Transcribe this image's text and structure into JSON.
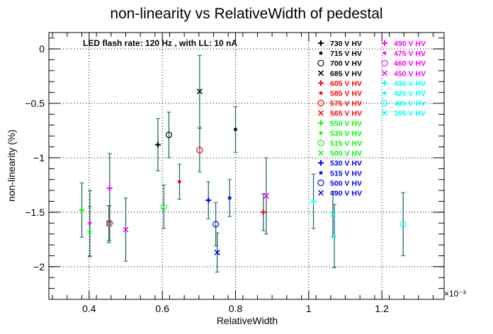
{
  "chart_data": {
    "type": "scatter",
    "title": "non-linearity vs RelativeWidth of pedestal",
    "xlabel": "RelativeWidth",
    "ylabel": "non-linearity (%)",
    "x_exponent": "×10⁻³",
    "annotation": "LED flash rate: 120 Hz , with LL: 10 nA",
    "xlim": [
      0.00029,
      0.00137
    ],
    "ylim": [
      -2.3,
      0.15
    ],
    "x_ticks": [
      0.4,
      0.6,
      0.8,
      1,
      1.2
    ],
    "x_tick_labels": [
      "0.4",
      "0.6",
      "0.8",
      "1",
      "1.2"
    ],
    "y_ticks": [
      0,
      -0.5,
      -1,
      -1.5,
      -2
    ],
    "y_tick_labels": [
      "0",
      "−0.5",
      "−1",
      "−1.5",
      "−2"
    ],
    "grid": true,
    "legend_position": "top-right",
    "error_bar_color": "#1e6b6b",
    "series": [
      {
        "name": "730 V HV",
        "marker": "plus",
        "color": "#000000",
        "x": 0.000588,
        "y": -0.88,
        "yerr": 0.24
      },
      {
        "name": "715 V HV",
        "marker": "star",
        "color": "#000000",
        "x": 0.0008,
        "y": -0.74,
        "yerr": 0.21
      },
      {
        "name": "700 V HV",
        "marker": "circle",
        "color": "#000000",
        "x": 0.000618,
        "y": -0.79,
        "yerr": 0.21
      },
      {
        "name": "685 V HV",
        "marker": "x",
        "color": "#000000",
        "x": 0.000702,
        "y": -0.39,
        "yerr": 0.33
      },
      {
        "name": "605 V HV",
        "marker": "plus",
        "color": "#ff0000",
        "x": 0.000876,
        "y": -1.5,
        "yerr": 0.17
      },
      {
        "name": "585 V HV",
        "marker": "star",
        "color": "#ff0000",
        "x": 0.000647,
        "y": -1.22,
        "yerr": 0.16
      },
      {
        "name": "575 V HV",
        "marker": "circle",
        "color": "#ff0000",
        "x": 0.000702,
        "y": -0.93,
        "yerr": 0.2
      },
      {
        "name": "565 V HV",
        "marker": "x",
        "color": "#ff0000",
        "x": 0.000454,
        "y": -1.6,
        "yerr": 0.16
      },
      {
        "name": "550 V HV",
        "marker": "plus",
        "color": "#00ff00",
        "x": 0.00038,
        "y": -1.48,
        "yerr": 0.25
      },
      {
        "name": "535 V HV",
        "marker": "star",
        "color": "#00ff00",
        "x": 0.000402,
        "y": -1.68,
        "yerr": 0.23
      },
      {
        "name": "515 V HV",
        "marker": "circle",
        "color": "#00ff00",
        "x": 0.000604,
        "y": -1.45,
        "yerr": 0.2
      },
      {
        "name": "500 V HV",
        "marker": "x",
        "color": "#00ff00",
        "x": 0.000454,
        "y": -1.61,
        "yerr": 0.17
      },
      {
        "name": "530 V HV",
        "marker": "plus",
        "color": "#0000ff",
        "x": 0.000726,
        "y": -1.39,
        "yerr": 0.17
      },
      {
        "name": "515 V HV",
        "marker": "star",
        "color": "#0000ff",
        "x": 0.000784,
        "y": -1.37,
        "yerr": 0.17
      },
      {
        "name": "500 V HV",
        "marker": "circle",
        "color": "#0000ff",
        "x": 0.000746,
        "y": -1.61,
        "yerr": 0.2
      },
      {
        "name": "490 V HV",
        "marker": "x",
        "color": "#0000ff",
        "x": 0.00075,
        "y": -1.87,
        "yerr": 0.18
      },
      {
        "name": "490 V HV",
        "marker": "plus",
        "color": "#ff00ff",
        "x": 0.000456,
        "y": -1.28,
        "yerr": 0.32
      },
      {
        "name": "475 V HV",
        "marker": "star",
        "color": "#ff00ff",
        "x": 0.000402,
        "y": -1.6,
        "yerr": 0.3
      },
      {
        "name": "460 V HV",
        "marker": "circle",
        "color": "#ff00ff",
        "x": 0.000456,
        "y": -1.6,
        "yerr": 0.16
      },
      {
        "name": "450 V HV",
        "marker": "x",
        "color": "#ff00ff",
        "x": 0.0005,
        "y": -1.66,
        "yerr": 0.29
      },
      {
        "name": "430 V HV",
        "marker": "plus",
        "color": "#00ffff",
        "x": 0.001013,
        "y": -1.4,
        "yerr": 0.25
      },
      {
        "name": "420 V HV",
        "marker": "star",
        "color": "#00ffff",
        "x": 0.00107,
        "y": -1.72,
        "yerr": 0.29
      },
      {
        "name": "405 V HV",
        "marker": "circle",
        "color": "#00ffff",
        "x": 0.001258,
        "y": -1.61,
        "yerr": 0.29
      },
      {
        "name": "395 V HV",
        "marker": "x",
        "color": "#00ffff",
        "x": 0.001066,
        "y": -1.52,
        "yerr": 0.21
      },
      {
        "name": "",
        "marker": "x",
        "color": "#ff00ff",
        "x": 0.000884,
        "y": -1.35,
        "yerr": 0.35
      }
    ]
  }
}
